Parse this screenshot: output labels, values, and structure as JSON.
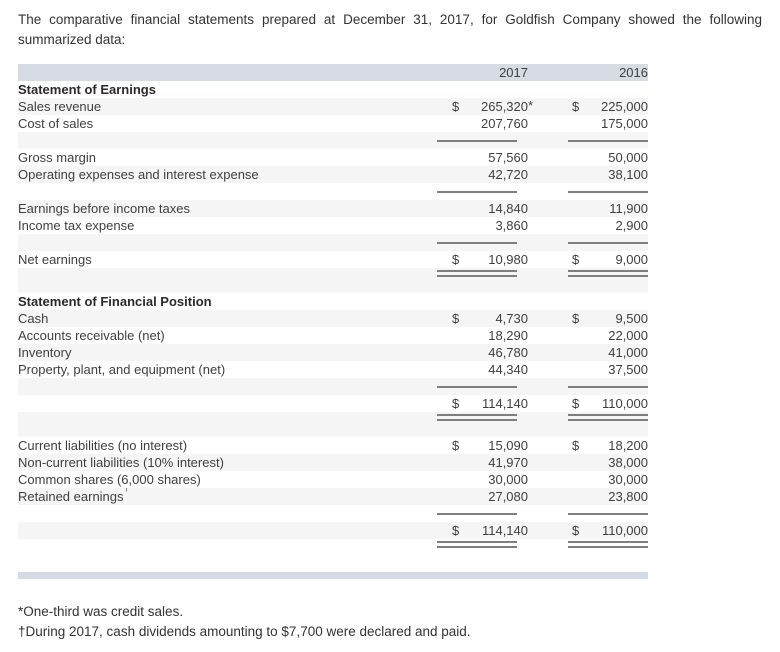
{
  "intro": "The comparative financial statements prepared at December 31, 2017, for Goldfish Company showed the following summarized data:",
  "colors": {
    "header_bar": "#d6dbe4",
    "footer_bar": "#d5dbe4",
    "row_tint": "#f5f5f6",
    "rule": "#7f7f7f",
    "text": "#3f3f3f"
  },
  "table": {
    "columns": [
      "2017",
      "2016"
    ],
    "rows": [
      {
        "type": "section",
        "label": "Statement of Earnings"
      },
      {
        "type": "data",
        "label": "Sales revenue",
        "d1": "$",
        "v1": "265,320",
        "star1": "*",
        "d2": "$",
        "v2": "225,000"
      },
      {
        "type": "data",
        "label": "Cost of sales",
        "v1": "207,760",
        "v2": "175,000"
      },
      {
        "type": "rule"
      },
      {
        "type": "data",
        "label": "Gross margin",
        "v1": "57,560",
        "v2": "50,000"
      },
      {
        "type": "data",
        "label": "Operating expenses and interest expense",
        "v1": "42,720",
        "v2": "38,100"
      },
      {
        "type": "rule"
      },
      {
        "type": "data",
        "label": "Earnings before income taxes",
        "v1": "14,840",
        "v2": "11,900"
      },
      {
        "type": "data",
        "label": "Income tax expense",
        "v1": "3,860",
        "v2": "2,900"
      },
      {
        "type": "rule"
      },
      {
        "type": "data",
        "label": "Net earnings",
        "d1": "$",
        "v1": "10,980",
        "d2": "$",
        "v2": "9,000"
      },
      {
        "type": "dblrule"
      },
      {
        "type": "section",
        "label": "Statement of Financial Position"
      },
      {
        "type": "data",
        "label": "Cash",
        "d1": "$",
        "v1": "4,730",
        "d2": "$",
        "v2": "9,500"
      },
      {
        "type": "data",
        "label": "Accounts receivable (net)",
        "v1": "18,290",
        "v2": "22,000"
      },
      {
        "type": "data",
        "label": "Inventory",
        "v1": "46,780",
        "v2": "41,000"
      },
      {
        "type": "data",
        "label": "Property, plant, and equipment (net)",
        "v1": "44,340",
        "v2": "37,500"
      },
      {
        "type": "rule"
      },
      {
        "type": "data",
        "label": "",
        "d1": "$",
        "v1": "114,140",
        "d2": "$",
        "v2": "110,000"
      },
      {
        "type": "dblrule"
      },
      {
        "type": "data",
        "label": "Current liabilities (no interest)",
        "d1": "$",
        "v1": "15,090",
        "d2": "$",
        "v2": "18,200"
      },
      {
        "type": "data",
        "label": "Non-current liabilities (10% interest)",
        "v1": "41,970",
        "v2": "38,000"
      },
      {
        "type": "data",
        "label": "Common shares (6,000 shares)",
        "v1": "30,000",
        "v2": "30,000"
      },
      {
        "type": "data",
        "label": "Retained earnings",
        "sup": "†",
        "v1": "27,080",
        "v2": "23,800"
      },
      {
        "type": "rule"
      },
      {
        "type": "data",
        "label": "",
        "d1": "$",
        "v1": "114,140",
        "d2": "$",
        "v2": "110,000"
      },
      {
        "type": "dblrule"
      },
      {
        "type": "spacer"
      },
      {
        "type": "bar"
      }
    ]
  },
  "footnotes": [
    "*One-third was credit sales.",
    "†During 2017, cash dividends amounting to $7,700 were declared and paid."
  ]
}
